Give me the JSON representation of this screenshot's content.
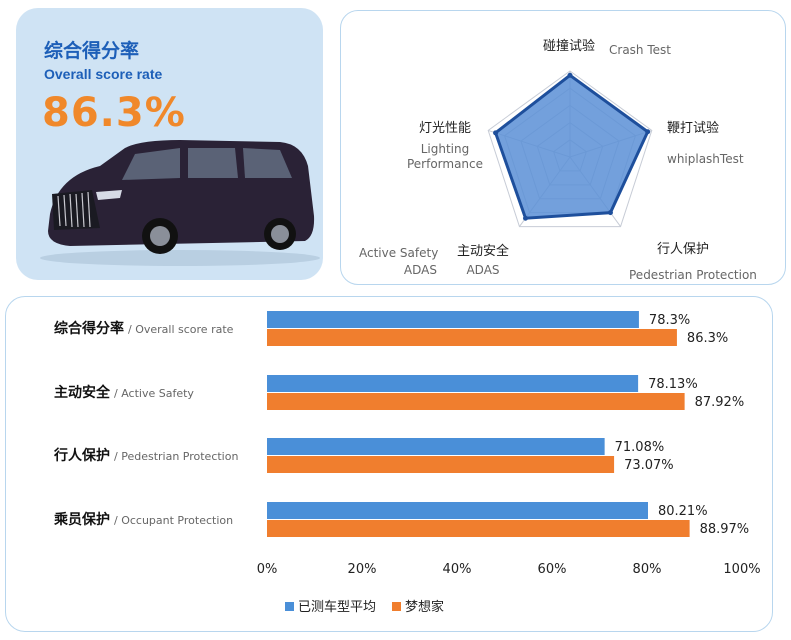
{
  "score_card": {
    "title_cn": "综合得分率",
    "title_en": "Overall score rate",
    "value": "86.3%"
  },
  "colors": {
    "average": "#4a8fd8",
    "dreamer": "#f07e2e",
    "radar_fill": "#5b8fd6",
    "radar_stroke": "#1e4f9c",
    "title_blue": "#1d5fb8",
    "score_orange": "#f0882a"
  },
  "chart_data": [
    {
      "type": "radar",
      "axes": [
        {
          "cn": "碰撞试验",
          "en": [
            "Crash Test"
          ]
        },
        {
          "cn": "鞭打试验",
          "en": [
            "whiplashTest"
          ]
        },
        {
          "cn": "行人保护",
          "en": [
            "Pedestrian Protection"
          ]
        },
        {
          "cn": "主动安全",
          "en": [
            "ADAS"
          ]
        },
        {
          "cn": "灯光性能",
          "en": [
            "Lighting",
            "Performance"
          ]
        }
      ],
      "extra_label": [
        "Active Safety",
        "ADAS"
      ],
      "values": [
        0.95,
        0.95,
        0.8,
        0.88,
        0.91
      ],
      "range": [
        0,
        1
      ],
      "grid_rings": 5
    },
    {
      "type": "bar",
      "orientation": "horizontal",
      "categories": [
        {
          "cn": "综合得分率",
          "en": "/ Overall score rate"
        },
        {
          "cn": "主动安全",
          "en": "/ Active Safety"
        },
        {
          "cn": "行人保护",
          "en": "/ Pedestrian Protection"
        },
        {
          "cn": "乘员保护",
          "en": "/ Occupant Protection"
        }
      ],
      "series": [
        {
          "name": "已测车型平均",
          "values": [
            78.3,
            78.13,
            71.08,
            80.21
          ],
          "labels": [
            "78.3%",
            "78.13%",
            "71.08%",
            "80.21%"
          ]
        },
        {
          "name": "梦想家",
          "values": [
            86.3,
            87.92,
            73.07,
            88.97
          ],
          "labels": [
            "86.3%",
            "87.92%",
            "73.07%",
            "88.97%"
          ]
        }
      ],
      "xlim": [
        0,
        100
      ],
      "x_ticks": [
        "0%",
        "20%",
        "40%",
        "60%",
        "80%",
        "100%"
      ],
      "legend": "bottom-center",
      "grid": false
    }
  ]
}
